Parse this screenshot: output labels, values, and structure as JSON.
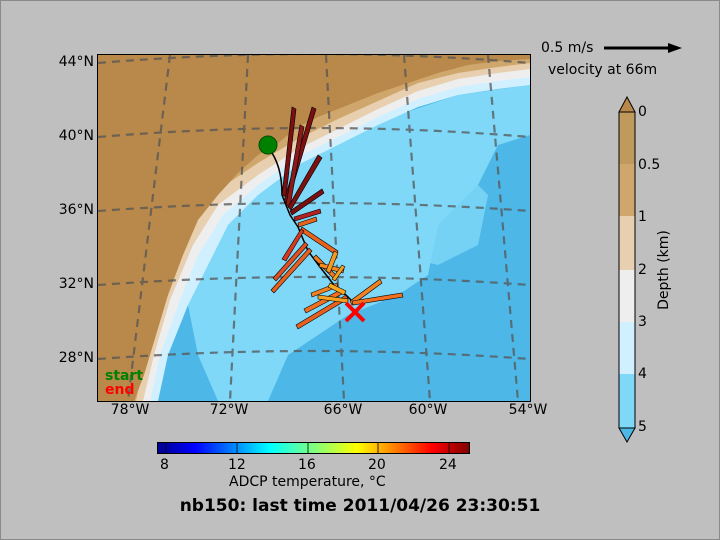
{
  "title": "nb150: last time 2011/04/26 23:30:51",
  "map": {
    "lat_labels": [
      "44°N",
      "40°N",
      "36°N",
      "32°N",
      "28°N"
    ],
    "lon_labels": [
      "78°W",
      "72°W",
      "66°W",
      "60°W",
      "54°W"
    ]
  },
  "legend": {
    "start": "start",
    "end": "end",
    "start_color": "#008000",
    "end_color": "#ff0000"
  },
  "velocity_key": {
    "speed": "0.5 m/s",
    "depth": "velocity at 66m"
  },
  "depth_colorbar": {
    "label": "Depth (km)",
    "ticks": [
      "0",
      "0.5",
      "1",
      "2",
      "3",
      "4",
      "5"
    ],
    "colors": [
      "#c09a5c",
      "#cfa76c",
      "#e8cfb0",
      "#eeeeee",
      "#d0f0ff",
      "#7fd8f8"
    ]
  },
  "temp_colorbar": {
    "label": "ADCP temperature, °C",
    "ticks": [
      "8",
      "12",
      "16",
      "20",
      "24"
    ]
  },
  "colors": {
    "land": "#b8894a",
    "deep_ocean": "#4db8e8",
    "track": "#000000"
  }
}
